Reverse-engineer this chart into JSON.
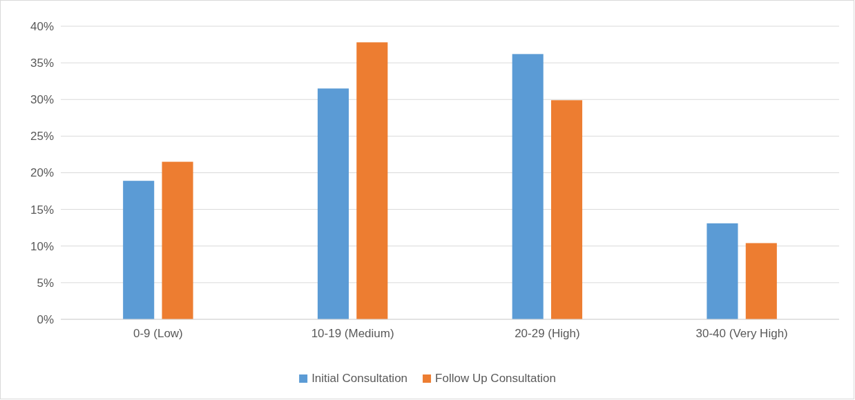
{
  "chart_data": {
    "type": "bar",
    "categories": [
      "0-9 (Low)",
      "10-19 (Medium)",
      "20-29 (High)",
      "30-40 (Very High)"
    ],
    "series": [
      {
        "name": "Initial Consultation",
        "color": "#5b9bd5",
        "values": [
          18.9,
          31.5,
          36.2,
          13.1
        ]
      },
      {
        "name": "Follow Up Consultation",
        "color": "#ed7d31",
        "values": [
          21.5,
          37.8,
          29.9,
          10.4
        ]
      }
    ],
    "ylim": [
      0,
      40
    ],
    "yticks": [
      {
        "value": 0,
        "label": "0%"
      },
      {
        "value": 5,
        "label": "5%"
      },
      {
        "value": 10,
        "label": "10%"
      },
      {
        "value": 15,
        "label": "15%"
      },
      {
        "value": 20,
        "label": "20%"
      },
      {
        "value": 25,
        "label": "25%"
      },
      {
        "value": 30,
        "label": "30%"
      },
      {
        "value": 35,
        "label": "35%"
      },
      {
        "value": 40,
        "label": "40%"
      }
    ],
    "grid": "y",
    "legend": "bottom"
  }
}
